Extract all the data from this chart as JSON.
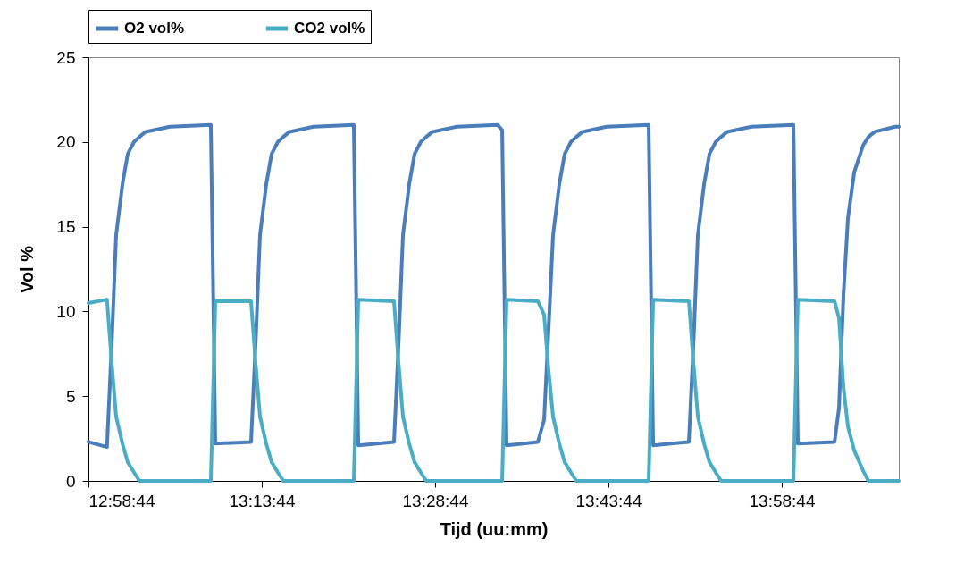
{
  "chart_data": {
    "type": "line",
    "xlabel": "Tijd (uu:mm)",
    "ylabel": "Vol %",
    "legend": "top",
    "grid": false,
    "marker": "none",
    "line_style": "solid",
    "x": [
      12.97889,
      13.0056,
      13.0124,
      13.0188,
      13.0279,
      13.0356,
      13.0446,
      13.0524,
      13.0614,
      13.0962,
      13.1554,
      13.1619,
      13.2134,
      13.2199,
      13.2263,
      13.2353,
      13.2431,
      13.2521,
      13.2598,
      13.2689,
      13.3036,
      13.3616,
      13.3681,
      13.4196,
      13.4261,
      13.4325,
      13.4415,
      13.4493,
      13.4583,
      13.466,
      13.4751,
      13.5098,
      13.5691,
      13.5756,
      13.582,
      13.6271,
      13.6361,
      13.6426,
      13.649,
      13.658,
      13.6658,
      13.6748,
      13.6825,
      13.6916,
      13.7263,
      13.7869,
      13.7934,
      13.8449,
      13.8514,
      13.8578,
      13.8668,
      13.8746,
      13.8836,
      13.8913,
      13.9003,
      13.9351,
      13.9957,
      14.0021,
      14.055,
      14.0614,
      14.0679,
      14.0743,
      14.0833,
      14.0962,
      14.1039,
      14.113,
      14.1426,
      14.1477
    ],
    "series": [
      {
        "name": "O2 vol%",
        "color": "#4a7ebb",
        "values": [
          2.3,
          2.0,
          8.0,
          14.5,
          17.5,
          19.3,
          20.0,
          20.3,
          20.6,
          20.9,
          21.0,
          2.2,
          2.3,
          8.0,
          14.5,
          17.5,
          19.3,
          20.0,
          20.3,
          20.6,
          20.9,
          21.0,
          2.1,
          2.3,
          8.0,
          14.5,
          17.5,
          19.3,
          20.0,
          20.3,
          20.6,
          20.9,
          21.0,
          20.7,
          2.1,
          2.3,
          3.6,
          9.0,
          14.5,
          17.5,
          19.3,
          20.0,
          20.3,
          20.6,
          20.9,
          21.0,
          2.1,
          2.3,
          8.0,
          14.5,
          17.5,
          19.3,
          20.0,
          20.3,
          20.6,
          20.9,
          21.0,
          2.2,
          2.3,
          4.3,
          11.0,
          15.5,
          18.2,
          19.8,
          20.3,
          20.6,
          20.9,
          20.9
        ]
      },
      {
        "name": "CO2 vol%",
        "color": "#4bacc6",
        "values": [
          10.5,
          10.7,
          7.0,
          3.8,
          2.2,
          1.1,
          0.5,
          0,
          0,
          0,
          0,
          10.6,
          10.6,
          7.0,
          3.8,
          2.2,
          1.1,
          0.5,
          0,
          0,
          0,
          0,
          10.7,
          10.6,
          7.0,
          3.8,
          2.2,
          1.1,
          0.5,
          0,
          0,
          0,
          0,
          0,
          10.7,
          10.6,
          9.8,
          6.5,
          3.8,
          2.2,
          1.1,
          0.5,
          0,
          0,
          0,
          0,
          10.7,
          10.6,
          7.0,
          3.8,
          2.2,
          1.1,
          0.5,
          0,
          0,
          0,
          0,
          10.7,
          10.6,
          9.6,
          5.5,
          3.2,
          1.8,
          0.6,
          0,
          0,
          0,
          0
        ]
      }
    ],
    "xlim": [
      12.97889,
      14.1477
    ],
    "xticks": [
      {
        "value": 12.97889,
        "label": "12:58:44"
      },
      {
        "value": 13.22889,
        "label": "13:13:44"
      },
      {
        "value": 13.47889,
        "label": "13:28:44"
      },
      {
        "value": 13.72889,
        "label": "13:43:44"
      },
      {
        "value": 13.97889,
        "label": "13:58:44"
      }
    ],
    "ylim": [
      0,
      25
    ],
    "yticks": [
      0,
      5,
      10,
      15,
      20,
      25
    ]
  }
}
